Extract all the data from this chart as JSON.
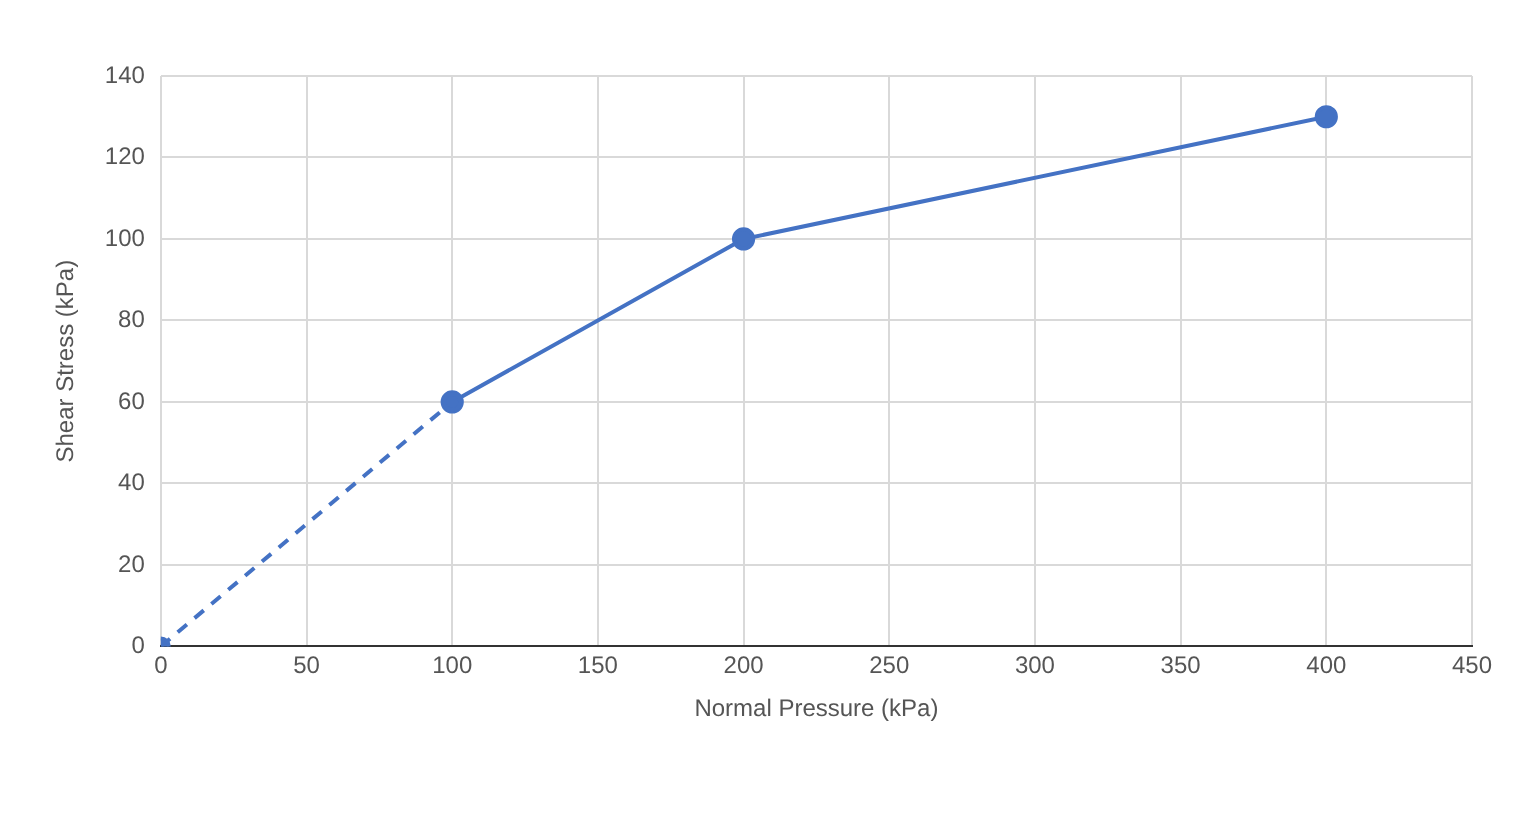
{
  "chart_data": {
    "type": "line",
    "xlabel": "Normal Pressure (kPa)",
    "ylabel": "Shear Stress (kPa)",
    "series": [
      {
        "type": "line",
        "color": "#4472c4",
        "x": [
          0,
          100
        ],
        "values": [
          0,
          60
        ],
        "line_style": "dashed"
      },
      {
        "type": "line",
        "color": "#4472c4",
        "x": [
          100,
          200,
          400
        ],
        "values": [
          60,
          100,
          130
        ],
        "line_style": "solid"
      }
    ],
    "xlim": [
      0,
      450
    ],
    "xticks": [
      0,
      50,
      100,
      150,
      200,
      250,
      300,
      350,
      400,
      450
    ],
    "ylim": [
      0,
      140
    ],
    "yticks": [
      0,
      20,
      40,
      60,
      80,
      100,
      120,
      140
    ],
    "grid": true,
    "legend": false,
    "marker": "circle"
  }
}
